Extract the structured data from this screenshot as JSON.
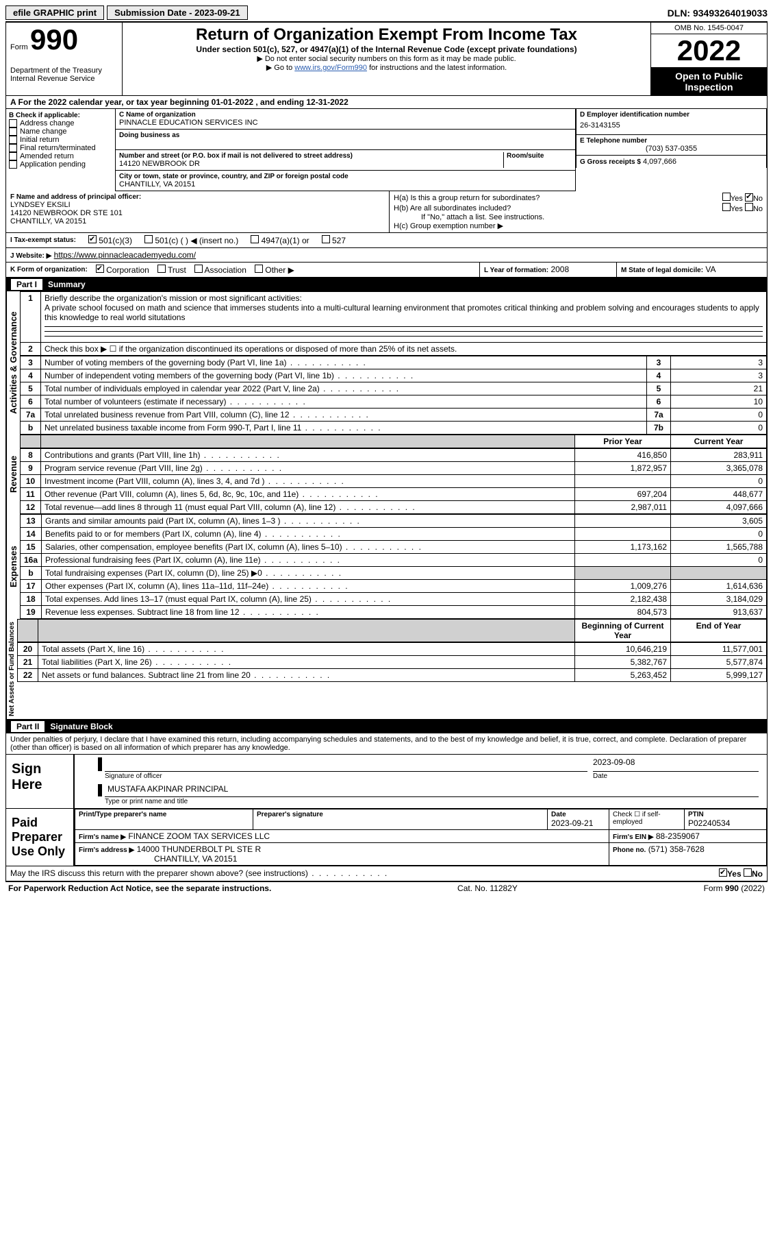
{
  "topbar": {
    "efile_label": "efile GRAPHIC print",
    "submission_label": "Submission Date - 2023-09-21",
    "dln_label": "DLN: 93493264019033"
  },
  "header": {
    "form_word": "Form",
    "form_number": "990",
    "dept": "Department of the Treasury",
    "irs": "Internal Revenue Service",
    "title": "Return of Organization Exempt From Income Tax",
    "sub": "Under section 501(c), 527, or 4947(a)(1) of the Internal Revenue Code (except private foundations)",
    "note1": "▶ Do not enter social security numbers on this form as it may be made public.",
    "note2_prefix": "▶ Go to ",
    "note2_link": "www.irs.gov/Form990",
    "note2_suffix": " for instructions and the latest information.",
    "omb": "OMB No. 1545-0047",
    "year": "2022",
    "open": "Open to Public Inspection"
  },
  "row_a": {
    "text": "A For the 2022 calendar year, or tax year beginning 01-01-2022   , and ending 12-31-2022"
  },
  "box_b": {
    "label": "B Check if applicable:",
    "opts": [
      "Address change",
      "Name change",
      "Initial return",
      "Final return/terminated",
      "Amended return",
      "Application pending"
    ]
  },
  "box_c": {
    "label": "C Name of organization",
    "name": "PINNACLE EDUCATION SERVICES INC",
    "dba_label": "Doing business as",
    "street_label": "Number and street (or P.O. box if mail is not delivered to street address)",
    "room_label": "Room/suite",
    "street": "14120 NEWBROOK DR",
    "city_label": "City or town, state or province, country, and ZIP or foreign postal code",
    "city": "CHANTILLY, VA  20151"
  },
  "box_d": {
    "label": "D Employer identification number",
    "value": "26-3143155"
  },
  "box_e": {
    "label": "E Telephone number",
    "value": "(703) 537-0355"
  },
  "box_g": {
    "label": "G Gross receipts $",
    "value": "4,097,666"
  },
  "box_f": {
    "label": "F Name and address of principal officer:",
    "name": "LYNDSEY EKSILI",
    "addr1": "14120 NEWBROOK DR STE 101",
    "addr2": "CHANTILLY, VA  20151"
  },
  "box_h": {
    "ha_label": "H(a)  Is this a group return for subordinates?",
    "yes": "Yes",
    "no": "No",
    "hb_label": "H(b)  Are all subordinates included?",
    "hb_note": "If \"No,\" attach a list. See instructions.",
    "hc_label": "H(c)  Group exemption number ▶"
  },
  "box_i": {
    "label": "I   Tax-exempt status:",
    "c3": "501(c)(3)",
    "c": "501(c) (  ) ◀ (insert no.)",
    "a1": "4947(a)(1) or",
    "s527": "527"
  },
  "box_j": {
    "label": "J   Website: ▶",
    "url": "https://www.pinnacleacademyedu.com/"
  },
  "box_k": {
    "label": "K Form of organization:",
    "corp": "Corporation",
    "trust": "Trust",
    "assoc": "Association",
    "other": "Other ▶"
  },
  "box_l": {
    "label": "L Year of formation:",
    "value": "2008"
  },
  "box_m": {
    "label": "M State of legal domicile:",
    "value": "VA"
  },
  "part1": {
    "tab": "Part I",
    "title": "Summary"
  },
  "summary": {
    "line1_label": "Briefly describe the organization's mission or most significant activities:",
    "line1_text": "A private school focused on math and science that immerses students into a multi-cultural learning environment that promotes critical thinking and problem solving and encourages students to apply this knowledge to real world situtations",
    "line2_text": "Check this box ▶ ☐  if the organization discontinued its operations or disposed of more than 25% of its net assets.",
    "lines": [
      {
        "n": "3",
        "d": "Number of voting members of the governing body (Part VI, line 1a)",
        "box": "3",
        "v": "3"
      },
      {
        "n": "4",
        "d": "Number of independent voting members of the governing body (Part VI, line 1b)",
        "box": "4",
        "v": "3"
      },
      {
        "n": "5",
        "d": "Total number of individuals employed in calendar year 2022 (Part V, line 2a)",
        "box": "5",
        "v": "21"
      },
      {
        "n": "6",
        "d": "Total number of volunteers (estimate if necessary)",
        "box": "6",
        "v": "10"
      },
      {
        "n": "7a",
        "d": "Total unrelated business revenue from Part VIII, column (C), line 12",
        "box": "7a",
        "v": "0"
      },
      {
        "n": "b",
        "d": "Net unrelated business taxable income from Form 990-T, Part I, line 11",
        "box": "7b",
        "v": "0"
      }
    ],
    "prior_year": "Prior Year",
    "current_year": "Current Year",
    "revenue": [
      {
        "n": "8",
        "d": "Contributions and grants (Part VIII, line 1h)",
        "p": "416,850",
        "c": "283,911"
      },
      {
        "n": "9",
        "d": "Program service revenue (Part VIII, line 2g)",
        "p": "1,872,957",
        "c": "3,365,078"
      },
      {
        "n": "10",
        "d": "Investment income (Part VIII, column (A), lines 3, 4, and 7d )",
        "p": "",
        "c": "0"
      },
      {
        "n": "11",
        "d": "Other revenue (Part VIII, column (A), lines 5, 6d, 8c, 9c, 10c, and 11e)",
        "p": "697,204",
        "c": "448,677"
      },
      {
        "n": "12",
        "d": "Total revenue—add lines 8 through 11 (must equal Part VIII, column (A), line 12)",
        "p": "2,987,011",
        "c": "4,097,666"
      }
    ],
    "expenses": [
      {
        "n": "13",
        "d": "Grants and similar amounts paid (Part IX, column (A), lines 1–3 )",
        "p": "",
        "c": "3,605"
      },
      {
        "n": "14",
        "d": "Benefits paid to or for members (Part IX, column (A), line 4)",
        "p": "",
        "c": "0"
      },
      {
        "n": "15",
        "d": "Salaries, other compensation, employee benefits (Part IX, column (A), lines 5–10)",
        "p": "1,173,162",
        "c": "1,565,788"
      },
      {
        "n": "16a",
        "d": "Professional fundraising fees (Part IX, column (A), line 11e)",
        "p": "",
        "c": "0"
      },
      {
        "n": "b",
        "d": "Total fundraising expenses (Part IX, column (D), line 25) ▶0",
        "p": "SHADE",
        "c": "SHADE"
      },
      {
        "n": "17",
        "d": "Other expenses (Part IX, column (A), lines 11a–11d, 11f–24e)",
        "p": "1,009,276",
        "c": "1,614,636"
      },
      {
        "n": "18",
        "d": "Total expenses. Add lines 13–17 (must equal Part IX, column (A), line 25)",
        "p": "2,182,438",
        "c": "3,184,029"
      },
      {
        "n": "19",
        "d": "Revenue less expenses. Subtract line 18 from line 12",
        "p": "804,573",
        "c": "913,637"
      }
    ],
    "beg_year": "Beginning of Current Year",
    "end_year": "End of Year",
    "netassets": [
      {
        "n": "20",
        "d": "Total assets (Part X, line 16)",
        "p": "10,646,219",
        "c": "11,577,001"
      },
      {
        "n": "21",
        "d": "Total liabilities (Part X, line 26)",
        "p": "5,382,767",
        "c": "5,577,874"
      },
      {
        "n": "22",
        "d": "Net assets or fund balances. Subtract line 21 from line 20",
        "p": "5,263,452",
        "c": "5,999,127"
      }
    ]
  },
  "part2": {
    "tab": "Part II",
    "title": "Signature Block"
  },
  "sig": {
    "declare": "Under penalties of perjury, I declare that I have examined this return, including accompanying schedules and statements, and to the best of my knowledge and belief, it is true, correct, and complete. Declaration of preparer (other than officer) is based on all information of which preparer has any knowledge.",
    "sign_here": "Sign Here",
    "sig_officer": "Signature of officer",
    "sig_date": "2023-09-08",
    "date_label": "Date",
    "printed_name": "MUSTAFA AKPINAR  PRINCIPAL",
    "printed_label": "Type or print name and title",
    "paid": "Paid Preparer Use Only",
    "prep_name_label": "Print/Type preparer's name",
    "prep_sig_label": "Preparer's signature",
    "prep_date_label": "Date",
    "prep_date": "2023-09-21",
    "check_if": "Check ☐ if self-employed",
    "ptin_label": "PTIN",
    "ptin": "P02240534",
    "firm_name_label": "Firm's name    ▶",
    "firm_name": "FINANCE ZOOM TAX SERVICES LLC",
    "firm_ein_label": "Firm's EIN ▶",
    "firm_ein": "88-2359067",
    "firm_addr_label": "Firm's address ▶",
    "firm_addr1": "14000 THUNDERBOLT PL STE R",
    "firm_addr2": "CHANTILLY, VA  20151",
    "phone_label": "Phone no.",
    "phone": "(571) 358-7628",
    "discuss": "May the IRS discuss this return with the preparer shown above? (see instructions)",
    "yes": "Yes",
    "no": "No"
  },
  "footer": {
    "left": "For Paperwork Reduction Act Notice, see the separate instructions.",
    "mid": "Cat. No. 11282Y",
    "right": "Form 990 (2022)"
  },
  "sidelabels": {
    "a": "Activities & Governance",
    "r": "Revenue",
    "e": "Expenses",
    "n": "Net Assets or Fund Balances"
  }
}
